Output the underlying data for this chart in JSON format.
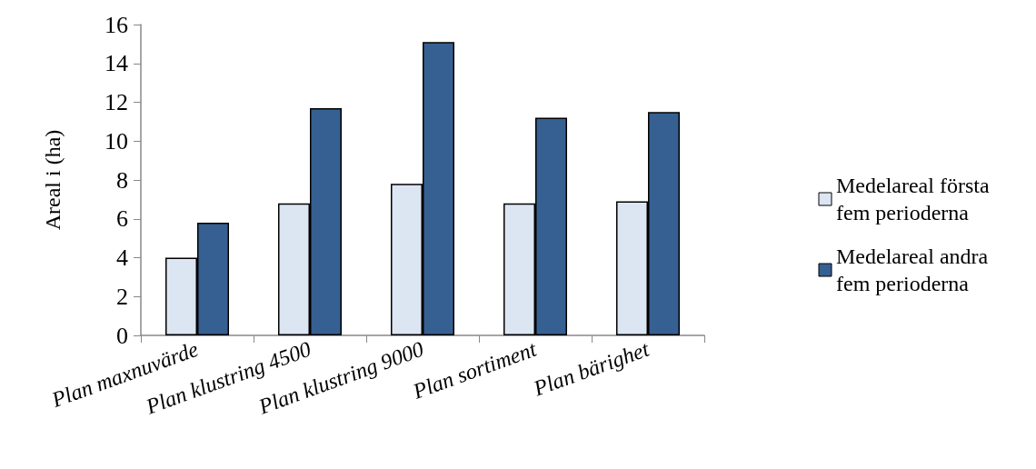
{
  "chart_data": {
    "type": "bar",
    "ylabel": "Areal i (ha)",
    "categories": [
      "Plan maxnuvärde",
      "Plan klustring 4500",
      "Plan klustring 9000",
      "Plan sortiment",
      "Plan bärighet"
    ],
    "series": [
      {
        "name": "Medelareal första  fem perioderna",
        "color": "#dce6f2",
        "values": [
          4.0,
          6.8,
          7.8,
          6.8,
          6.9
        ]
      },
      {
        "name": "Medelareal andra fem perioderna",
        "color": "#376092",
        "values": [
          5.8,
          11.7,
          15.1,
          11.2,
          11.5
        ]
      }
    ],
    "ylim": [
      0,
      16
    ],
    "yticks": [
      0,
      2,
      4,
      6,
      8,
      10,
      12,
      14,
      16
    ],
    "grid": false,
    "legend": "right"
  }
}
